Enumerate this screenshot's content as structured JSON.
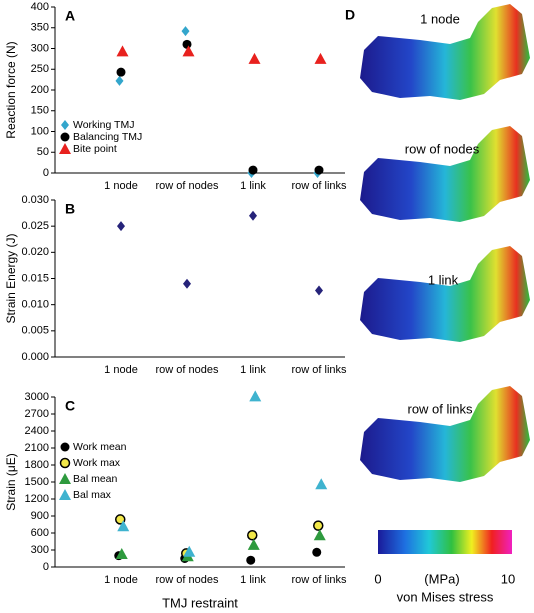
{
  "chart_data": [
    {
      "type": "scatter",
      "panel": "A",
      "ylabel": "Reaction force (N)",
      "categories": [
        "1 node",
        "row of nodes",
        "1 link",
        "row of links"
      ],
      "series": [
        {
          "name": "Working TMJ",
          "color": "#33a6cc",
          "marker": "diamond",
          "values": [
            222,
            342,
            0,
            0
          ]
        },
        {
          "name": "Balancing TMJ",
          "color": "#000000",
          "marker": "circle",
          "values": [
            243,
            310,
            7,
            7
          ]
        },
        {
          "name": "Bite point",
          "color": "#e8211e",
          "marker": "triangle",
          "values": [
            293,
            293,
            275,
            275
          ]
        }
      ],
      "ylim": [
        0,
        400
      ],
      "yticks": [
        0,
        50,
        100,
        150,
        200,
        250,
        300,
        350,
        400
      ],
      "legend": "lower left"
    },
    {
      "type": "scatter",
      "panel": "B",
      "ylabel": "Strain Energy (J)",
      "categories": [
        "1 node",
        "row of nodes",
        "1 link",
        "row of links"
      ],
      "series": [
        {
          "color": "#26237a",
          "marker": "diamond",
          "values": [
            0.025,
            0.014,
            0.027,
            0.0127
          ]
        }
      ],
      "ylim": [
        0,
        0.03
      ],
      "yticks": [
        {
          "value": 0,
          "label": "0.000"
        },
        {
          "value": 0.005,
          "label": "0.005"
        },
        {
          "value": 0.01,
          "label": "0.010"
        },
        {
          "value": 0.015,
          "label": "0.015"
        },
        {
          "value": 0.02,
          "label": "0.020"
        },
        {
          "value": 0.025,
          "label": "0.025"
        },
        {
          "value": 0.03,
          "label": "0.030"
        }
      ]
    },
    {
      "type": "scatter",
      "panel": "C",
      "ylabel": "Strain (μE)",
      "xlabel": "TMJ restraint",
      "categories": [
        "1 node",
        "row of nodes",
        "1 link",
        "row of links"
      ],
      "series": [
        {
          "name": "Work mean",
          "color": "#000000",
          "marker": "circle",
          "values": [
            200,
            150,
            120,
            260
          ]
        },
        {
          "name": "Work max",
          "color": "#f2e84a",
          "edgecolor": "#000000",
          "marker": "circle",
          "values": [
            840,
            240,
            560,
            730
          ]
        },
        {
          "name": "Bal mean",
          "color": "#2e9a3e",
          "marker": "triangle",
          "values": [
            230,
            190,
            390,
            560
          ]
        },
        {
          "name": "Bal max",
          "color": "#3fb3cf",
          "marker": "triangle",
          "values": [
            720,
            270,
            3010,
            1460
          ]
        }
      ],
      "ylim": [
        0,
        3000
      ],
      "yticks": [
        0,
        300,
        600,
        900,
        1200,
        1500,
        1800,
        2100,
        2400,
        2700,
        3000
      ],
      "legend": "upper left"
    }
  ],
  "panel_d": {
    "panel": "D",
    "models": [
      "1 node",
      "row of nodes",
      "1 link",
      "row of links"
    ],
    "colorbar": {
      "min": 0,
      "max": 10,
      "unit": "(MPa)",
      "label": "von Mises stress"
    }
  }
}
